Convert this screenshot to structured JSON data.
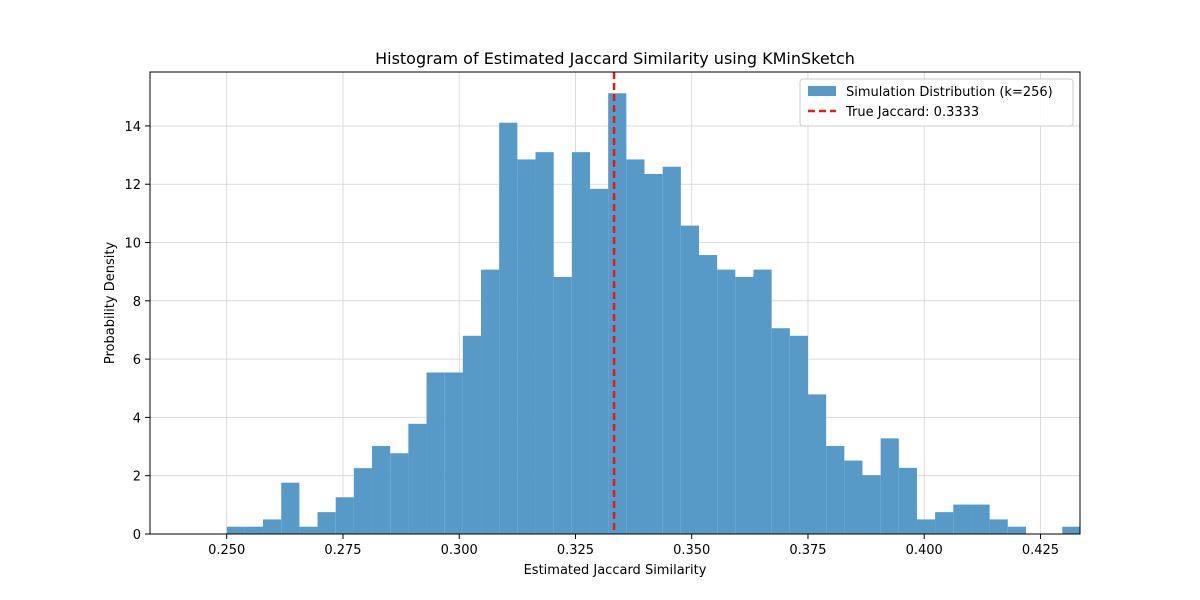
{
  "chart_data": {
    "type": "bar",
    "title": "Histogram of Estimated Jaccard Similarity using KMinSketch",
    "xlabel": "Estimated Jaccard Similarity",
    "ylabel": "Probability Density",
    "xlim": [
      0.2335,
      0.4335
    ],
    "ylim": [
      0,
      15.85
    ],
    "xticks": [
      0.25,
      0.275,
      0.3,
      0.325,
      0.35,
      0.375,
      0.4,
      0.425
    ],
    "xtick_labels": [
      "0.250",
      "0.275",
      "0.300",
      "0.325",
      "0.350",
      "0.375",
      "0.400",
      "0.425"
    ],
    "yticks": [
      0,
      2,
      4,
      6,
      8,
      10,
      12,
      14
    ],
    "ytick_labels": [
      "0",
      "2",
      "4",
      "6",
      "8",
      "10",
      "12",
      "14"
    ],
    "grid": true,
    "legend_position": "top-right",
    "bin_width": 0.00391,
    "bins_start": [
      0.25,
      0.25391,
      0.25781,
      0.26172,
      0.26563,
      0.26953,
      0.27344,
      0.27734,
      0.28125,
      0.28516,
      0.28906,
      0.29297,
      0.29688,
      0.30078,
      0.30469,
      0.30859,
      0.3125,
      0.31641,
      0.32031,
      0.32422,
      0.32813,
      0.33203,
      0.33594,
      0.33984,
      0.34375,
      0.34766,
      0.35156,
      0.35547,
      0.35938,
      0.36328,
      0.36719,
      0.37109,
      0.375,
      0.37891,
      0.38281,
      0.38672,
      0.39063,
      0.39453,
      0.39844,
      0.40234,
      0.40625,
      0.41016,
      0.41406,
      0.41797,
      0.42188,
      0.42578,
      0.42969
    ],
    "densities": [
      0.25,
      0.25,
      0.5,
      1.76,
      0.25,
      0.75,
      1.26,
      2.26,
      3.02,
      2.77,
      3.78,
      5.54,
      5.54,
      6.8,
      9.07,
      14.11,
      12.85,
      13.1,
      8.82,
      13.1,
      11.84,
      15.12,
      12.85,
      12.35,
      12.6,
      10.58,
      9.57,
      9.07,
      8.82,
      9.07,
      7.06,
      6.8,
      4.79,
      3.02,
      2.52,
      2.02,
      3.28,
      2.27,
      0.5,
      0.75,
      1.01,
      1.01,
      0.5,
      0.25,
      0,
      0,
      0.25
    ],
    "series_name": "Simulation Distribution (k=256)",
    "bar_color": "#5799c7",
    "reference_line": {
      "x": 0.3333,
      "label": "True Jaccard: 0.3333",
      "color": "#e31a1c",
      "style": "dashed"
    }
  }
}
